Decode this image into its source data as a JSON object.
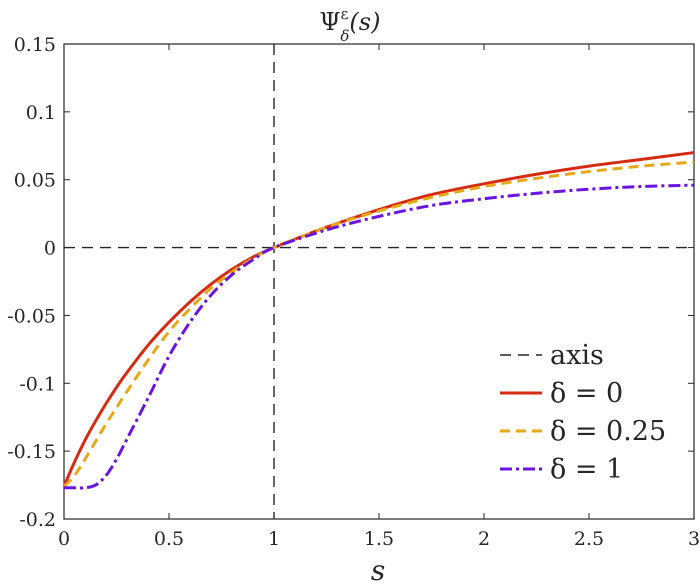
{
  "chart_data": {
    "type": "line",
    "title": "Ψ",
    "title_sup": "ε",
    "title_sub": "δ",
    "title_arg": "(s)",
    "xlabel": "s",
    "ylabel": "",
    "xlim": [
      0,
      3
    ],
    "ylim": [
      -0.2,
      0.15
    ],
    "xticks": [
      0,
      0.5,
      1,
      1.5,
      2,
      2.5,
      3
    ],
    "xtick_labels": [
      "0",
      "0.5",
      "1",
      "1.5",
      "2",
      "2.5",
      "3"
    ],
    "yticks": [
      0.15,
      0.1,
      0.05,
      0,
      -0.05,
      -0.1,
      -0.15,
      -0.2
    ],
    "ytick_labels": [
      "0.15",
      "0.1",
      "0.05",
      "0",
      "-0.05",
      "-0.1",
      "-0.15",
      "-0.2"
    ],
    "grid": false,
    "legend_position": "bottom-right",
    "reference_lines": {
      "name": "axis",
      "x": 1,
      "y": 0,
      "color": "#262626",
      "style": "dashed"
    },
    "series": [
      {
        "name": "δ = 0",
        "color": "#d62b12",
        "style": "solid",
        "x": [
          0,
          0.05,
          0.1,
          0.15,
          0.2,
          0.25,
          0.3,
          0.4,
          0.5,
          0.6,
          0.7,
          0.8,
          0.9,
          1.0,
          1.25,
          1.5,
          1.75,
          2.0,
          2.25,
          2.5,
          2.75,
          3.0
        ],
        "y": [
          -0.176,
          -0.158,
          -0.142,
          -0.128,
          -0.115,
          -0.103,
          -0.092,
          -0.072,
          -0.055,
          -0.04,
          -0.027,
          -0.016,
          -0.007,
          0.0,
          0.015,
          0.028,
          0.039,
          0.047,
          0.054,
          0.06,
          0.065,
          0.07
        ]
      },
      {
        "name": "δ = 0.25",
        "color": "#e6a817",
        "style": "dashed",
        "x": [
          0,
          0.05,
          0.1,
          0.15,
          0.2,
          0.25,
          0.3,
          0.4,
          0.5,
          0.6,
          0.7,
          0.8,
          0.9,
          1.0,
          1.25,
          1.5,
          1.75,
          2.0,
          2.25,
          2.5,
          2.75,
          3.0
        ],
        "y": [
          -0.176,
          -0.168,
          -0.156,
          -0.143,
          -0.13,
          -0.118,
          -0.106,
          -0.083,
          -0.062,
          -0.045,
          -0.03,
          -0.018,
          -0.008,
          0.0,
          0.015,
          0.027,
          0.037,
          0.045,
          0.051,
          0.056,
          0.06,
          0.063
        ]
      },
      {
        "name": "δ = 1",
        "color": "#6b14e0",
        "style": "dashdot",
        "x": [
          0,
          0.05,
          0.1,
          0.15,
          0.2,
          0.25,
          0.3,
          0.4,
          0.5,
          0.6,
          0.7,
          0.8,
          0.9,
          1.0,
          1.25,
          1.5,
          1.75,
          2.0,
          2.25,
          2.5,
          2.75,
          3.0
        ],
        "y": [
          -0.177,
          -0.177,
          -0.177,
          -0.175,
          -0.168,
          -0.156,
          -0.141,
          -0.111,
          -0.08,
          -0.055,
          -0.035,
          -0.02,
          -0.009,
          0.0,
          0.013,
          0.023,
          0.031,
          0.036,
          0.04,
          0.043,
          0.045,
          0.046
        ]
      }
    ]
  }
}
